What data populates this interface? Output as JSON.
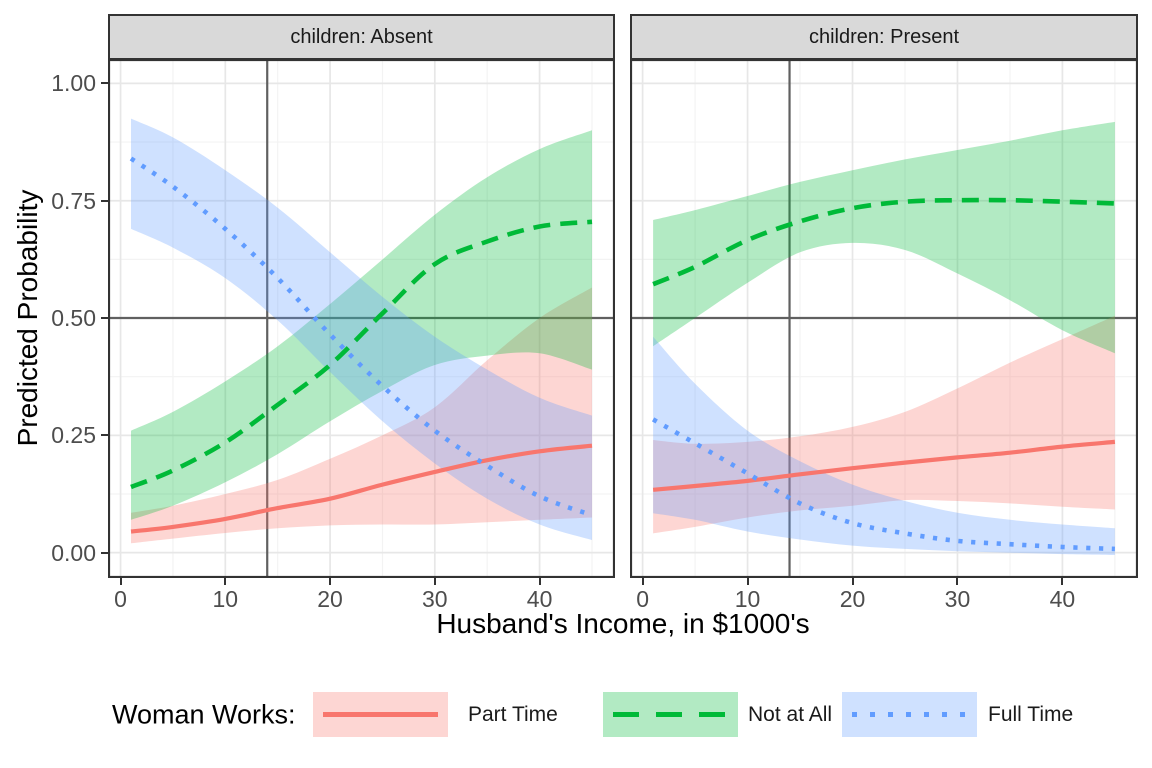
{
  "facets": [
    "children: Absent",
    "children: Present"
  ],
  "axes": {
    "x": {
      "title": "Husband's Income, in $1000's",
      "tick_values": [
        0,
        10,
        20,
        30,
        40
      ],
      "tick_labels": [
        "0",
        "10",
        "20",
        "30",
        "40"
      ],
      "minor_values": [
        5,
        15,
        25,
        35,
        45
      ],
      "domain": [
        -1.2,
        47.2
      ]
    },
    "y": {
      "title": "Predicted Probability",
      "tick_values": [
        0,
        0.25,
        0.5,
        0.75,
        1.0
      ],
      "tick_labels": [
        "0.00",
        "0.25",
        "0.50",
        "0.75",
        "1.00"
      ],
      "minor_values": [
        0.125,
        0.375,
        0.625,
        0.875
      ],
      "domain": [
        -0.054,
        1.052
      ]
    }
  },
  "ref_lines": {
    "vline_x": 14,
    "hline_y": 0.5
  },
  "legend": {
    "title": "Woman Works:",
    "items": [
      {
        "label": "Part Time",
        "style": "solid",
        "color": "#F8766D"
      },
      {
        "label": "Not at All",
        "style": "dashed",
        "color": "#00BA38"
      },
      {
        "label": "Full Time",
        "style": "dotted",
        "color": "#619CFF"
      }
    ]
  },
  "colors": {
    "panel_border": "#333333",
    "strip_fill": "#D9D9D9",
    "grid_major": "#E7E7E7",
    "grid_minor": "#F3F3F3",
    "ref_line": "#606060",
    "tick_mark": "#333333",
    "tick_label": "#4D4D4D",
    "ribbon_alpha": 0.3
  },
  "chart_data": [
    {
      "type": "line",
      "facet_label": "children: Absent",
      "x": [
        1,
        5,
        10,
        15,
        20,
        25,
        30,
        35,
        40,
        45
      ],
      "series": [
        {
          "name": "Part Time",
          "style": "solid",
          "color": "#F8766D",
          "y": [
            0.045,
            0.055,
            0.072,
            0.095,
            0.115,
            0.145,
            0.172,
            0.197,
            0.216,
            0.228
          ],
          "lower": [
            0.02,
            0.03,
            0.042,
            0.052,
            0.058,
            0.06,
            0.06,
            0.065,
            0.07,
            0.075
          ],
          "upper": [
            0.085,
            0.1,
            0.125,
            0.155,
            0.2,
            0.25,
            0.31,
            0.41,
            0.5,
            0.565
          ]
        },
        {
          "name": "Not at All",
          "style": "dashed",
          "color": "#00BA38",
          "y": [
            0.14,
            0.175,
            0.235,
            0.315,
            0.4,
            0.51,
            0.615,
            0.663,
            0.695,
            0.705
          ],
          "lower": [
            0.07,
            0.1,
            0.15,
            0.21,
            0.28,
            0.345,
            0.4,
            0.42,
            0.425,
            0.39
          ],
          "upper": [
            0.26,
            0.3,
            0.365,
            0.44,
            0.53,
            0.625,
            0.72,
            0.8,
            0.86,
            0.9
          ]
        },
        {
          "name": "Full Time",
          "style": "dotted",
          "color": "#619CFF",
          "y": [
            0.84,
            0.78,
            0.69,
            0.585,
            0.465,
            0.355,
            0.26,
            0.185,
            0.12,
            0.08
          ],
          "lower": [
            0.69,
            0.65,
            0.585,
            0.495,
            0.385,
            0.28,
            0.19,
            0.115,
            0.06,
            0.027
          ],
          "upper": [
            0.925,
            0.885,
            0.815,
            0.735,
            0.64,
            0.545,
            0.46,
            0.39,
            0.33,
            0.292
          ]
        }
      ]
    },
    {
      "type": "line",
      "facet_label": "children: Present",
      "x": [
        1,
        5,
        10,
        15,
        20,
        25,
        30,
        35,
        40,
        45
      ],
      "series": [
        {
          "name": "Part Time",
          "style": "solid",
          "color": "#F8766D",
          "y": [
            0.134,
            0.142,
            0.153,
            0.167,
            0.18,
            0.192,
            0.203,
            0.213,
            0.226,
            0.236
          ],
          "lower": [
            0.041,
            0.055,
            0.075,
            0.09,
            0.1,
            0.112,
            0.11,
            0.105,
            0.098,
            0.092
          ],
          "upper": [
            0.24,
            0.232,
            0.236,
            0.248,
            0.268,
            0.3,
            0.35,
            0.405,
            0.455,
            0.505
          ]
        },
        {
          "name": "Not at All",
          "style": "dashed",
          "color": "#00BA38",
          "y": [
            0.572,
            0.609,
            0.666,
            0.706,
            0.734,
            0.748,
            0.751,
            0.751,
            0.748,
            0.744
          ],
          "lower": [
            0.44,
            0.5,
            0.575,
            0.64,
            0.66,
            0.645,
            0.595,
            0.538,
            0.474,
            0.425
          ],
          "upper": [
            0.709,
            0.73,
            0.76,
            0.79,
            0.815,
            0.838,
            0.858,
            0.878,
            0.9,
            0.918
          ]
        },
        {
          "name": "Full Time",
          "style": "dotted",
          "color": "#619CFF",
          "y": [
            0.284,
            0.233,
            0.169,
            0.105,
            0.063,
            0.041,
            0.025,
            0.018,
            0.012,
            0.008
          ],
          "lower": [
            0.084,
            0.07,
            0.045,
            0.028,
            0.015,
            0.008,
            0.003,
            0.0,
            -0.003,
            -0.005
          ],
          "upper": [
            0.46,
            0.36,
            0.26,
            0.195,
            0.145,
            0.11,
            0.085,
            0.07,
            0.06,
            0.052
          ]
        }
      ]
    }
  ]
}
